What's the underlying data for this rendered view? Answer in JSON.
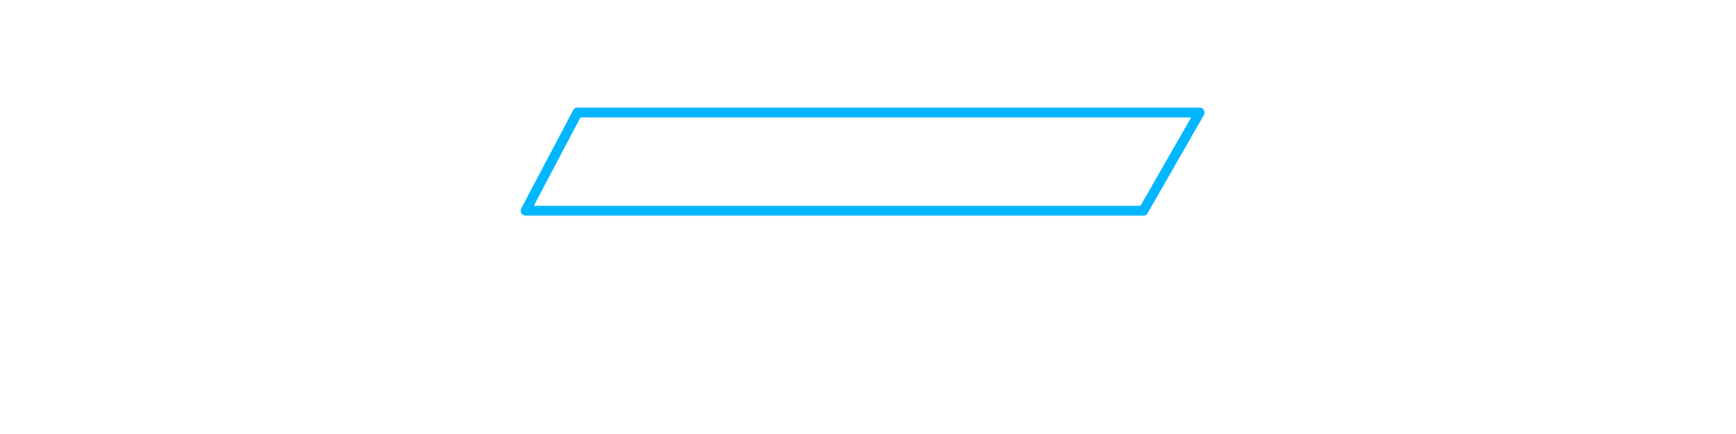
{
  "diagram": {
    "shape": "parallelogram",
    "stroke_color": "#00B7FF",
    "fill_color": "#FFFFFF",
    "background_color": "#FFFFFF"
  }
}
